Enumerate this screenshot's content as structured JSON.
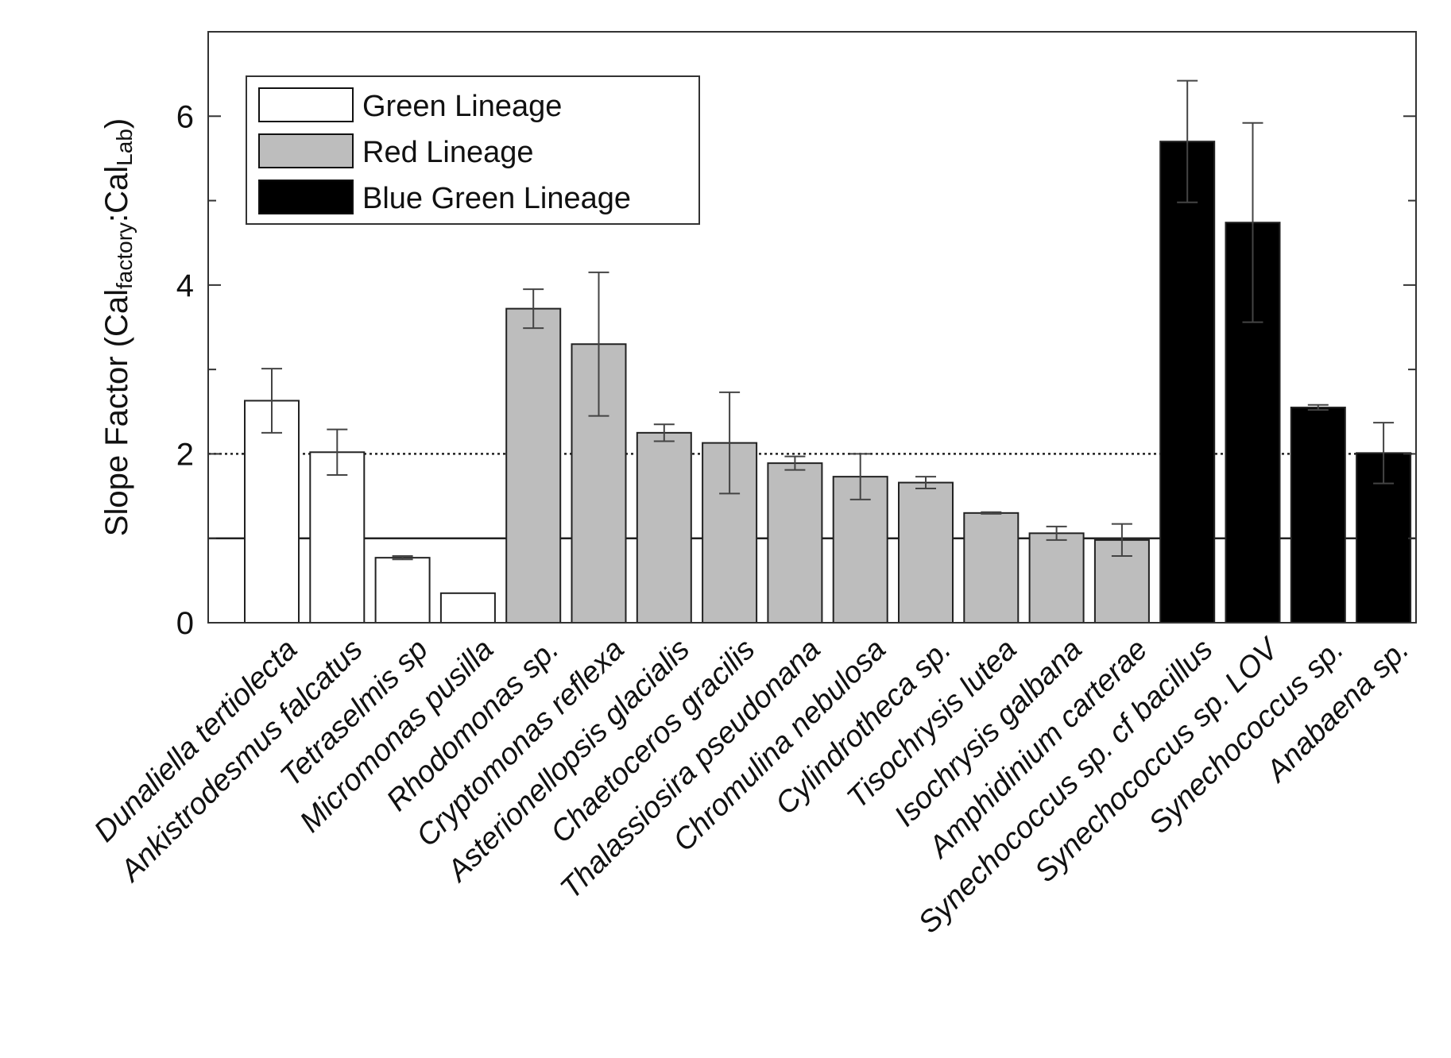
{
  "chart_data": {
    "type": "bar",
    "ylabel_main": "Slope Factor (Cal",
    "ylabel_sub1": "factory",
    "ylabel_colon": ":Cal",
    "ylabel_sub2": "Lab",
    "ylabel_close": ")",
    "ylim": [
      0,
      7
    ],
    "yticks": [
      "0",
      "2",
      "4",
      "6"
    ],
    "ytick_values": [
      0,
      2,
      4,
      6
    ],
    "reference_lines": [
      2,
      1
    ],
    "legend_position": "top-left",
    "series": [
      {
        "name": "Green Lineage",
        "color": "#ffffff"
      },
      {
        "name": "Red Lineage",
        "color": "#bdbdbd"
      },
      {
        "name": "Blue Green Lineage",
        "color": "#000000"
      }
    ],
    "bars": [
      {
        "label": "Dunaliella tertiolecta",
        "value": 2.63,
        "err": 0.38,
        "series": 0
      },
      {
        "label": "Ankistrodesmus falcatus",
        "value": 2.02,
        "err": 0.27,
        "series": 0
      },
      {
        "label": "Tetraselmis sp",
        "value": 0.77,
        "err": 0.02,
        "series": 0
      },
      {
        "label": "Micromonas pusilla",
        "value": 0.35,
        "err": 0,
        "series": 0
      },
      {
        "label": "Rhodomonas sp.",
        "value": 3.72,
        "err": 0.23,
        "series": 1
      },
      {
        "label": "Cryptomonas reflexa",
        "value": 3.3,
        "err": 0.85,
        "series": 1
      },
      {
        "label": "Asterionellopsis glacialis",
        "value": 2.25,
        "err": 0.1,
        "series": 1
      },
      {
        "label": "Chaetoceros gracilis",
        "value": 2.13,
        "err": 0.6,
        "series": 1
      },
      {
        "label": "Thalassiosira pseudonana",
        "value": 1.89,
        "err": 0.08,
        "series": 1
      },
      {
        "label": "Chromulina nebulosa",
        "value": 1.73,
        "err": 0.27,
        "series": 1
      },
      {
        "label": "Cylindrotheca sp.",
        "value": 1.66,
        "err": 0.07,
        "series": 1
      },
      {
        "label": "Tisochrysis lutea",
        "value": 1.3,
        "err": 0.01,
        "series": 1
      },
      {
        "label": "Isochrysis galbana",
        "value": 1.06,
        "err": 0.08,
        "series": 1
      },
      {
        "label": "Amphidinium carterae",
        "value": 0.98,
        "err": 0.19,
        "series": 1
      },
      {
        "label": "Synechococcus sp. cf bacillus",
        "value": 5.7,
        "err": 0.72,
        "series": 2
      },
      {
        "label": "Synechococcus sp. LOV",
        "value": 4.74,
        "err": 1.18,
        "series": 2
      },
      {
        "label": "Synechococcus sp.",
        "value": 2.55,
        "err": 0.03,
        "series": 2
      },
      {
        "label": "Anabaena sp.",
        "value": 2.01,
        "err": 0.36,
        "series": 2
      }
    ]
  }
}
